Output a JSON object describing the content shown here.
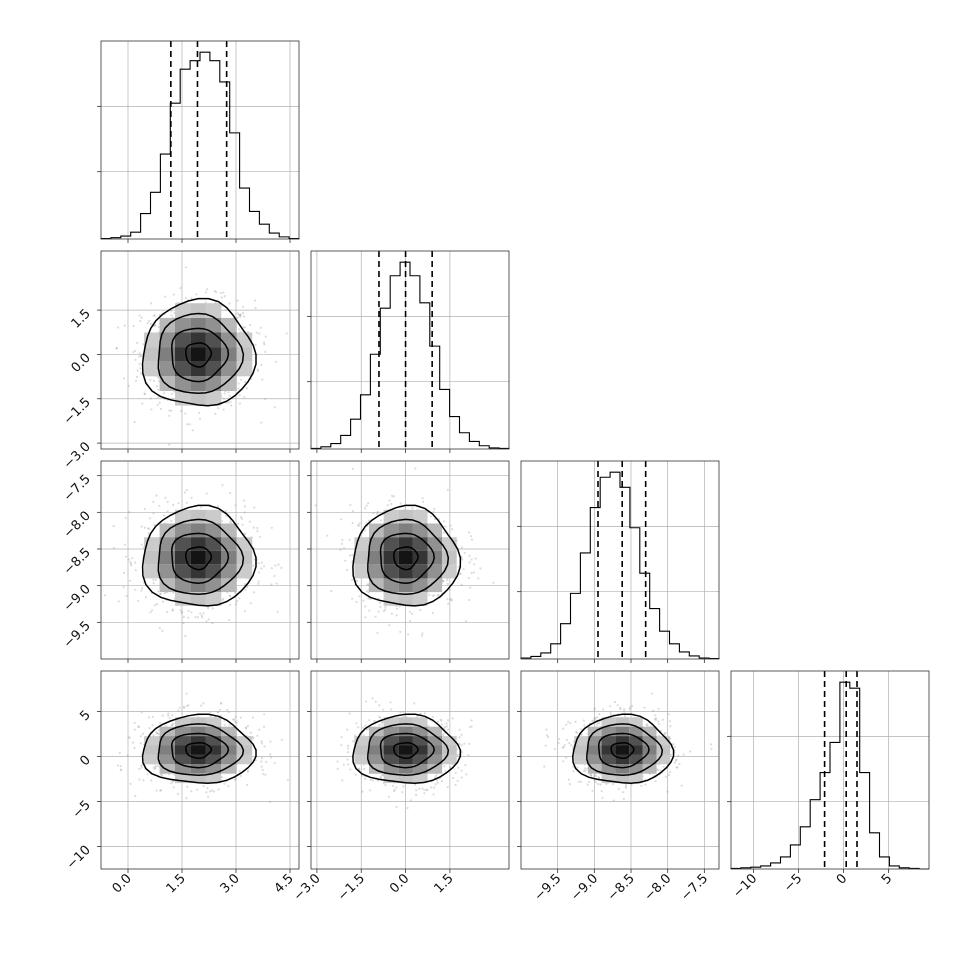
{
  "chart_data": {
    "type": "corner",
    "colors": {
      "line": "#000000",
      "fill": "#000000",
      "grid": "#b0b0b0",
      "points": "#9a9a9a"
    },
    "grid": true,
    "parameters": [
      {
        "index": 0,
        "range": [
          -0.75,
          4.75
        ],
        "ticks": [
          0.0,
          1.5,
          3.0,
          4.5
        ],
        "tick_labels": [
          "0.0",
          "1.5",
          "3.0",
          "4.5"
        ],
        "quantiles": [
          1.19,
          1.93,
          2.74
        ],
        "hist_heights": [
          1,
          3,
          7,
          16,
          60,
          110,
          200,
          320,
          400,
          420,
          440,
          420,
          370,
          250,
          120,
          65,
          35,
          14,
          5,
          1
        ],
        "mean": 1.95,
        "sd": 0.78
      },
      {
        "index": 1,
        "range": [
          -3.2,
          3.5
        ],
        "ticks": [
          -3.0,
          -1.5,
          0.0,
          1.5
        ],
        "tick_labels": [
          "−3.0",
          "−1.5",
          "0.0",
          "1.5"
        ],
        "quantiles": [
          -0.9,
          0.0,
          0.9
        ],
        "hist_heights": [
          1,
          4,
          10,
          25,
          55,
          100,
          175,
          260,
          320,
          345,
          320,
          270,
          190,
          110,
          60,
          30,
          14,
          6,
          2,
          1
        ],
        "mean": 0.0,
        "sd": 0.9
      },
      {
        "index": 2,
        "range": [
          -10.0,
          -7.3
        ],
        "ticks": [
          -9.5,
          -9.0,
          -8.5,
          -8.0,
          -7.5
        ],
        "tick_labels": [
          "−9.5",
          "−9.0",
          "−8.5",
          "−8.0",
          "−7.5"
        ],
        "quantiles": [
          -8.95,
          -8.62,
          -8.3
        ],
        "hist_heights": [
          2,
          5,
          12,
          30,
          70,
          130,
          210,
          300,
          360,
          370,
          340,
          260,
          170,
          100,
          55,
          30,
          14,
          6,
          2,
          1
        ],
        "mean": -8.62,
        "sd": 0.34
      },
      {
        "index": 3,
        "range": [
          -12.5,
          9.5
        ],
        "ticks": [
          -10,
          -5,
          0,
          5
        ],
        "tick_labels": [
          "−10",
          "−5",
          "0",
          "5"
        ],
        "quantiles": [
          -2.1,
          0.3,
          1.5
        ],
        "hist_heights": [
          1,
          2,
          3,
          5,
          10,
          20,
          40,
          70,
          115,
          160,
          210,
          310,
          300,
          160,
          60,
          20,
          5,
          2,
          1,
          0
        ],
        "mean": 0.7,
        "sd": 1.9
      }
    ]
  }
}
